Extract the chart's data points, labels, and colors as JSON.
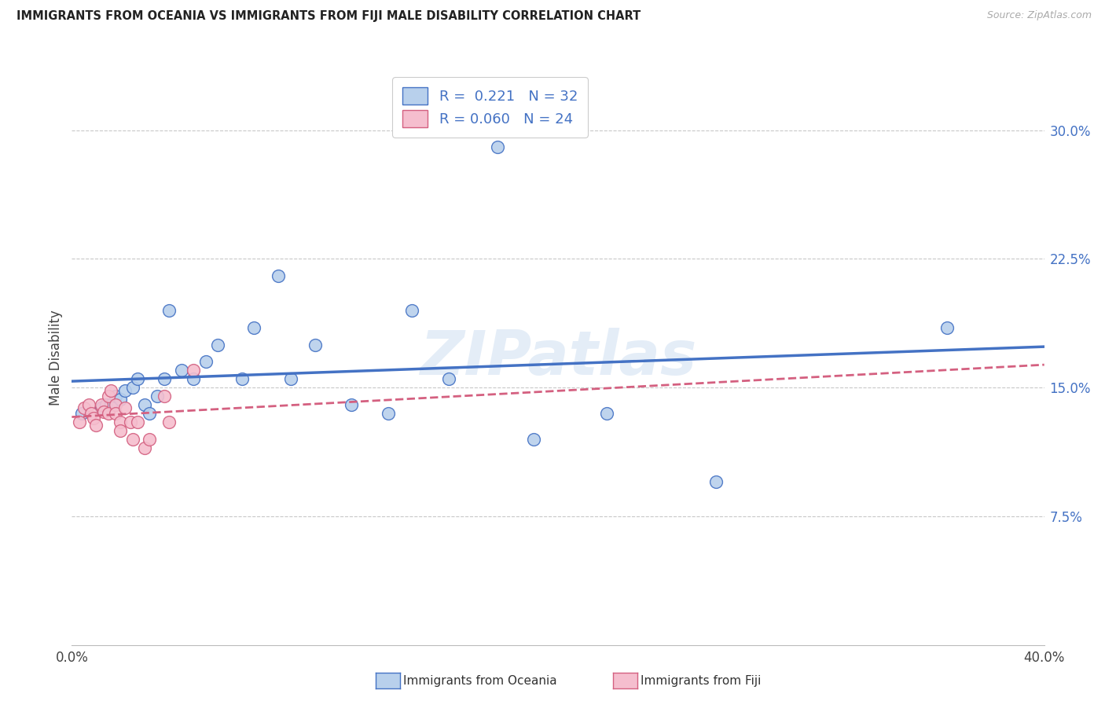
{
  "title": "IMMIGRANTS FROM OCEANIA VS IMMIGRANTS FROM FIJI MALE DISABILITY CORRELATION CHART",
  "source": "Source: ZipAtlas.com",
  "ylabel": "Male Disability",
  "right_yticks": [
    "30.0%",
    "22.5%",
    "15.0%",
    "7.5%"
  ],
  "right_ytick_vals": [
    0.3,
    0.225,
    0.15,
    0.075
  ],
  "xlim": [
    0.0,
    0.4
  ],
  "ylim": [
    0.0,
    0.335
  ],
  "watermark": "ZIPatlas",
  "series1": {
    "name": "Immigrants from Oceania",
    "R": 0.221,
    "N": 32,
    "color": "#b8d0ec",
    "edge_color": "#4472c4",
    "x": [
      0.004,
      0.012,
      0.014,
      0.016,
      0.018,
      0.02,
      0.022,
      0.025,
      0.027,
      0.03,
      0.032,
      0.035,
      0.038,
      0.04,
      0.045,
      0.05,
      0.055,
      0.06,
      0.07,
      0.075,
      0.085,
      0.09,
      0.1,
      0.115,
      0.13,
      0.14,
      0.155,
      0.175,
      0.19,
      0.22,
      0.265,
      0.36
    ],
    "y": [
      0.135,
      0.138,
      0.14,
      0.14,
      0.145,
      0.143,
      0.148,
      0.15,
      0.155,
      0.14,
      0.135,
      0.145,
      0.155,
      0.195,
      0.16,
      0.155,
      0.165,
      0.175,
      0.155,
      0.185,
      0.215,
      0.155,
      0.175,
      0.14,
      0.135,
      0.195,
      0.155,
      0.29,
      0.12,
      0.135,
      0.095,
      0.185
    ]
  },
  "series2": {
    "name": "Immigrants from Fiji",
    "R": 0.06,
    "N": 24,
    "color": "#f5bece",
    "edge_color": "#d46080",
    "x": [
      0.003,
      0.005,
      0.007,
      0.008,
      0.009,
      0.01,
      0.012,
      0.013,
      0.015,
      0.015,
      0.016,
      0.018,
      0.018,
      0.02,
      0.02,
      0.022,
      0.024,
      0.025,
      0.027,
      0.03,
      0.032,
      0.038,
      0.04,
      0.05
    ],
    "y": [
      0.13,
      0.138,
      0.14,
      0.135,
      0.132,
      0.128,
      0.14,
      0.136,
      0.145,
      0.135,
      0.148,
      0.14,
      0.135,
      0.13,
      0.125,
      0.138,
      0.13,
      0.12,
      0.13,
      0.115,
      0.12,
      0.145,
      0.13,
      0.16
    ]
  },
  "background_color": "#ffffff",
  "grid_color": "#c8c8c8",
  "legend_R_color": "#4472c4"
}
